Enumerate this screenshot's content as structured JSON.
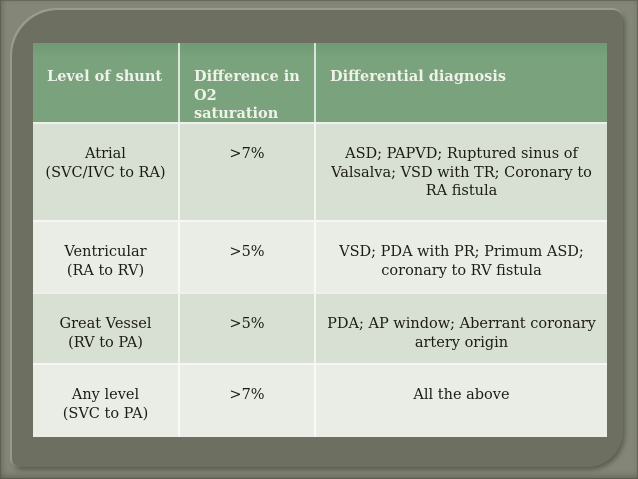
{
  "slide": {
    "type": "presentation-slide-table"
  },
  "table": {
    "header": {
      "level": "Level of shunt",
      "difference": "Difference in\nO2 saturation",
      "diagnosis": "Differential diagnosis"
    },
    "rows": [
      {
        "level": "Atrial\n(SVC/IVC to RA)",
        "difference": ">7%",
        "diagnosis": "ASD; PAPVD; Ruptured sinus of\nValsalva; VSD with TR; Coronary to\nRA fistula"
      },
      {
        "level": "Ventricular\n(RA to RV)",
        "difference": ">5%",
        "diagnosis": "VSD; PDA with PR; Primum ASD;\ncoronary to RV fistula"
      },
      {
        "level": "Great Vessel\n(RV to PA)",
        "difference": ">5%",
        "diagnosis": "PDA; AP window; Aberrant coronary\nartery origin"
      },
      {
        "level": "Any level\n(SVC to PA)",
        "difference": ">7%",
        "diagnosis": "All the above"
      }
    ]
  },
  "colors": {
    "frame_outer": "#848778",
    "frame_inner": "#6d7061",
    "header_bg": "#79a27d",
    "header_text": "#f0f2e9",
    "band_a": "#d8dfd3",
    "band_b": "#eaede6",
    "body_text": "#1c1c15"
  }
}
